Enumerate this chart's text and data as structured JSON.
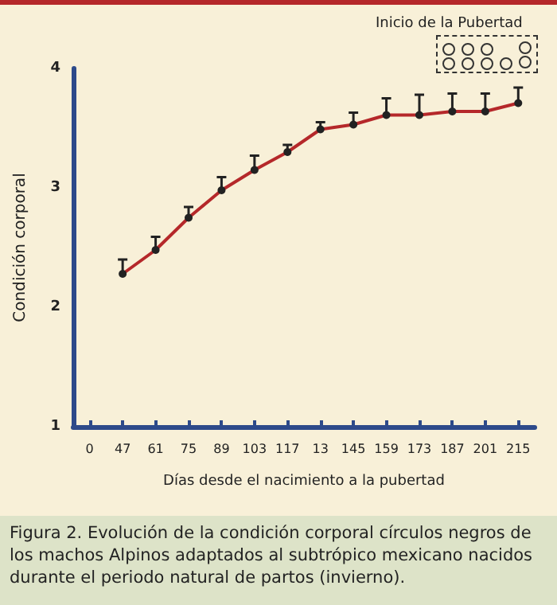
{
  "chart_data": {
    "type": "line",
    "xlabel": "Días desde el nacimiento a la pubertad",
    "ylabel": "Condición corporal",
    "categories": [
      "0",
      "47",
      "61",
      "75",
      "89",
      "103",
      "117",
      "13",
      "145",
      "159",
      "173",
      "187",
      "201",
      "215"
    ],
    "series": [
      {
        "color": "#b5282a",
        "values": [
          null,
          2.28,
          2.48,
          2.75,
          2.98,
          3.15,
          3.3,
          3.49,
          3.53,
          3.61,
          3.61,
          3.64,
          3.64,
          3.71
        ],
        "errors": [
          null,
          [
            2.28,
            2.4
          ],
          [
            2.48,
            2.59
          ],
          [
            2.75,
            2.84
          ],
          [
            2.98,
            3.09
          ],
          [
            3.15,
            3.27
          ],
          [
            3.3,
            3.36
          ],
          [
            3.49,
            3.55
          ],
          [
            3.53,
            3.63
          ],
          [
            3.61,
            3.75
          ],
          [
            3.61,
            3.78
          ],
          [
            3.64,
            3.79
          ],
          [
            3.64,
            3.79
          ],
          [
            3.71,
            3.84
          ]
        ]
      }
    ],
    "ylim": [
      1,
      4
    ],
    "yticks": [
      1,
      2,
      3,
      4
    ],
    "grid": false,
    "marker": "circle",
    "line_style": "solid",
    "annotations": [
      "Inicio de la Pubertad",
      "Figura 2. Evolución de la condición corporal círculos negros de los machos Alpinos adaptados al subtrópico mexicano nacidos durante el periodo natural de partos (invierno)."
    ]
  }
}
